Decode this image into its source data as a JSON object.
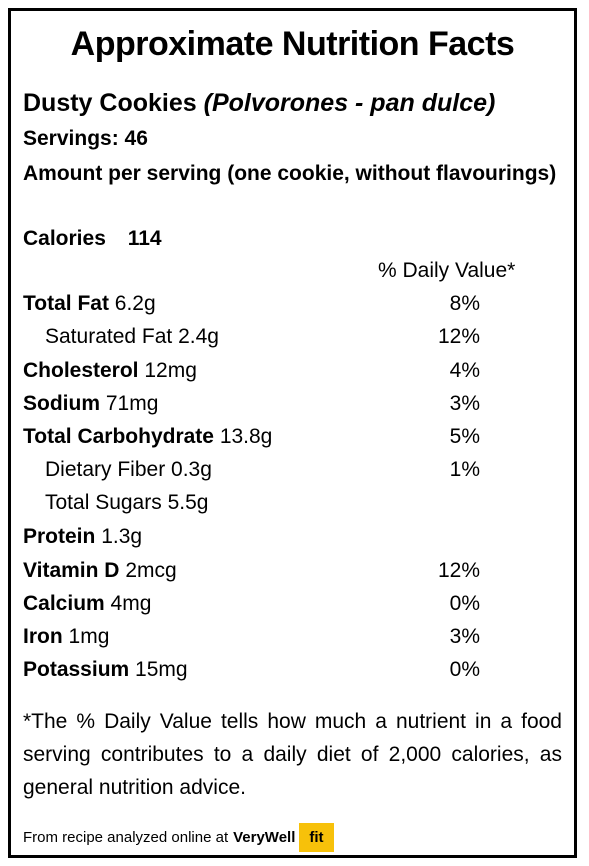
{
  "title": "Approximate Nutrition Facts",
  "product": {
    "name": "Dusty Cookies",
    "alt_name": "(Polvorones - pan dulce)"
  },
  "servings": "Servings: 46",
  "amount_per_serving": "Amount per serving (one cookie, without flavourings)",
  "calories": {
    "label": "Calories",
    "value": "114"
  },
  "daily_value_header": "% Daily Value*",
  "nutrients": [
    {
      "label": "Total Fat",
      "amount": "6.2g",
      "dv": "8%"
    },
    {
      "label": "Saturated Fat 2.4g",
      "amount": "",
      "dv": "12%"
    },
    {
      "label": "Cholesterol",
      "amount": "12mg",
      "dv": "4%"
    },
    {
      "label": "Sodium",
      "amount": "71mg",
      "dv": "3%"
    },
    {
      "label": "Total Carbohydrate",
      "amount": "13.8g",
      "dv": "5%"
    },
    {
      "label": "Dietary Fiber 0.3g",
      "amount": "",
      "dv": "1%"
    },
    {
      "label": "Total Sugars 5.5g",
      "amount": "",
      "dv": ""
    },
    {
      "label": "Protein",
      "amount": "1.3g",
      "dv": ""
    },
    {
      "label": "Vitamin D",
      "amount": "2mcg",
      "dv": "12%"
    },
    {
      "label": "Calcium",
      "amount": "4mg",
      "dv": "0%"
    },
    {
      "label": "Iron",
      "amount": "1mg",
      "dv": "3%"
    },
    {
      "label": "Potassium",
      "amount": "15mg",
      "dv": "0%"
    }
  ],
  "footnote": "*The % Daily Value tells how much a nutrient in a food serving contributes to a daily diet of 2,000 calories, as general nutrition advice.",
  "source": {
    "text": "From recipe analyzed online at",
    "brand": "VeryWell",
    "brand_badge": "fit",
    "badge_color": "#f7c10a"
  }
}
